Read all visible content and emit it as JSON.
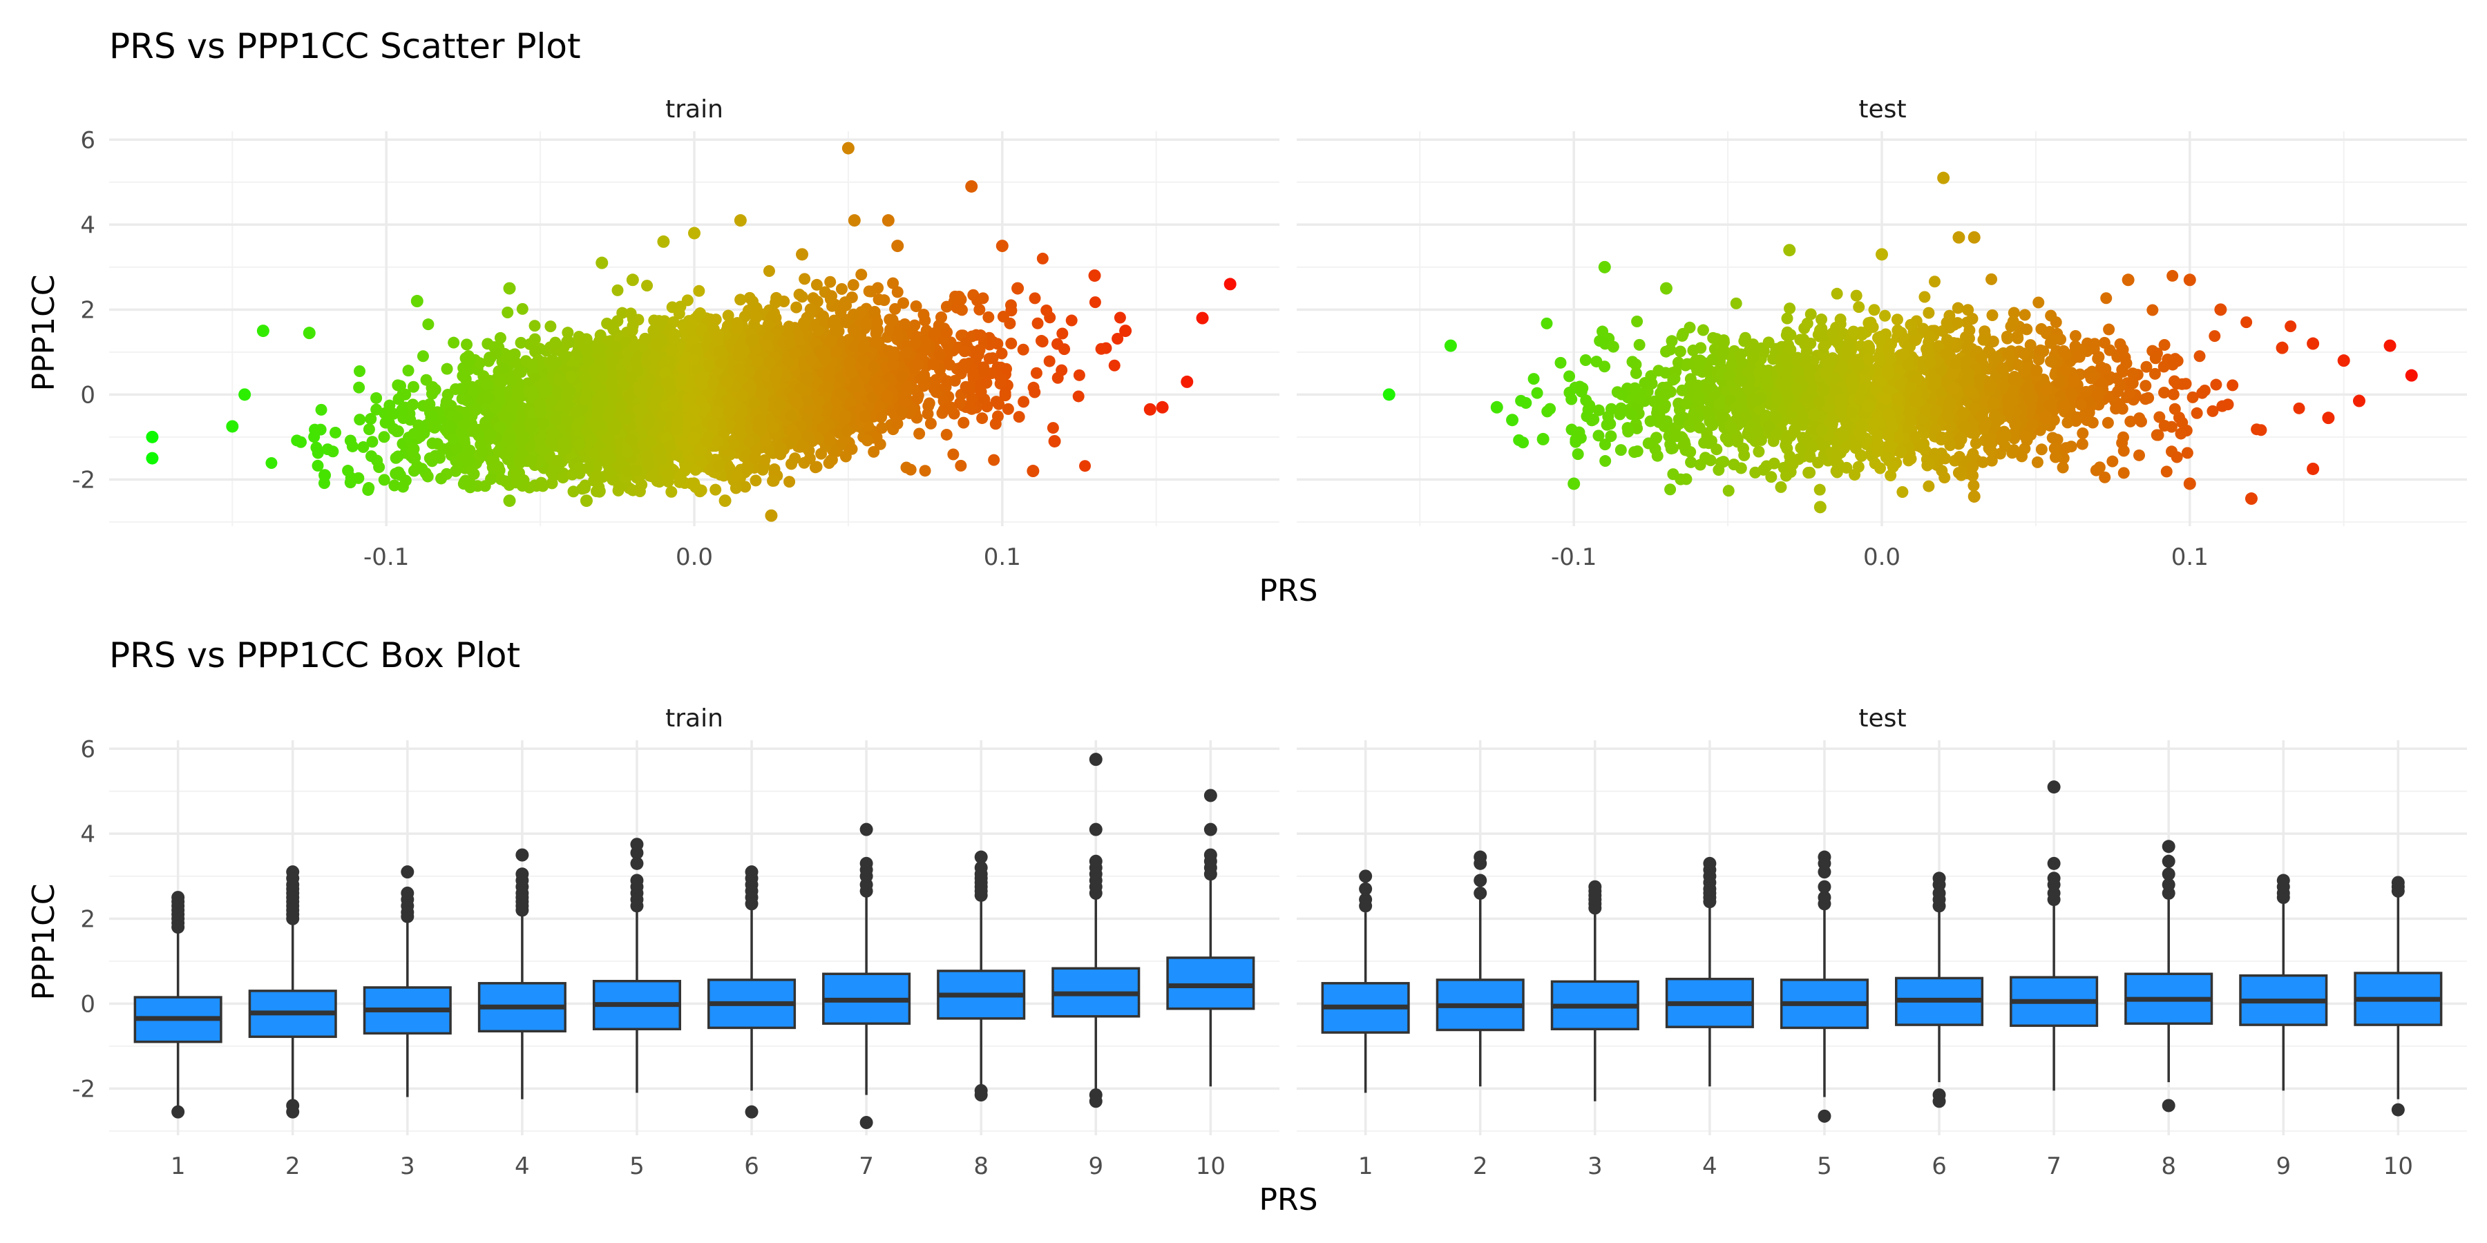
{
  "chart_data": [
    {
      "type": "scatter",
      "title": "PRS vs PPP1CC Scatter Plot",
      "xlabel": "PRS",
      "ylabel": "PPP1CC",
      "xlim": [
        -0.19,
        0.19
      ],
      "ylim": [
        -3.1,
        6.2
      ],
      "x_ticks": [
        -0.1,
        0.0,
        0.1
      ],
      "x_tick_labels": [
        "-0.1",
        "0.0",
        "0.1"
      ],
      "y_ticks": [
        -2,
        0,
        2,
        4,
        6
      ],
      "y_tick_labels": [
        "-2",
        "0",
        "2",
        "4",
        "6"
      ],
      "grid": true,
      "legend": "none",
      "color_gradient": {
        "low": "#00ff00",
        "mid": "#c0b400",
        "high": "#ff0000",
        "by": "x"
      },
      "facets": [
        {
          "label": "train",
          "bulk": {
            "x_mean": 0.0,
            "x_sd": 0.042,
            "y_mean": -0.05,
            "y_sd": 0.85,
            "slope": 9,
            "n": 5000
          },
          "points": [
            [
              -0.176,
              -1.0
            ],
            [
              -0.176,
              -1.5
            ],
            [
              -0.15,
              -0.75
            ],
            [
              -0.146,
              0.0
            ],
            [
              -0.14,
              1.5
            ],
            [
              -0.125,
              1.45
            ],
            [
              -0.12,
              -1.9
            ],
            [
              -0.09,
              2.2
            ],
            [
              -0.06,
              2.5
            ],
            [
              -0.06,
              -2.5
            ],
            [
              -0.035,
              -2.5
            ],
            [
              -0.03,
              3.1
            ],
            [
              -0.02,
              2.7
            ],
            [
              -0.01,
              3.6
            ],
            [
              0.0,
              3.8
            ],
            [
              0.01,
              -2.5
            ],
            [
              0.015,
              4.1
            ],
            [
              0.025,
              -2.85
            ],
            [
              0.035,
              3.3
            ],
            [
              0.05,
              5.8
            ],
            [
              0.052,
              4.1
            ],
            [
              0.063,
              4.1
            ],
            [
              0.066,
              3.5
            ],
            [
              0.09,
              4.9
            ],
            [
              0.1,
              3.5
            ],
            [
              0.105,
              2.5
            ],
            [
              0.11,
              -1.8
            ],
            [
              0.117,
              -1.1
            ],
            [
              0.13,
              2.8
            ],
            [
              0.14,
              1.5
            ],
            [
              0.148,
              -0.35
            ],
            [
              0.152,
              -0.3
            ],
            [
              0.16,
              0.3
            ],
            [
              0.165,
              1.8
            ],
            [
              0.174,
              2.6
            ]
          ]
        },
        {
          "label": "test",
          "bulk": {
            "x_mean": 0.0,
            "x_sd": 0.042,
            "y_mean": -0.05,
            "y_sd": 0.8,
            "slope": 2,
            "n": 2200
          },
          "points": [
            [
              -0.16,
              0.0
            ],
            [
              -0.14,
              1.15
            ],
            [
              -0.125,
              -0.3
            ],
            [
              -0.12,
              -0.6
            ],
            [
              -0.11,
              -1.05
            ],
            [
              -0.1,
              -2.1
            ],
            [
              -0.09,
              3.0
            ],
            [
              -0.07,
              2.5
            ],
            [
              -0.03,
              3.4
            ],
            [
              0.0,
              3.3
            ],
            [
              0.02,
              5.1
            ],
            [
              0.025,
              3.7
            ],
            [
              0.03,
              3.7
            ],
            [
              0.03,
              -2.4
            ],
            [
              -0.02,
              -2.65
            ],
            [
              0.08,
              2.7
            ],
            [
              0.1,
              2.7
            ],
            [
              0.1,
              -2.1
            ],
            [
              0.11,
              2.0
            ],
            [
              0.12,
              -2.45
            ],
            [
              0.13,
              1.1
            ],
            [
              0.14,
              1.2
            ],
            [
              0.14,
              -1.75
            ],
            [
              0.145,
              -0.55
            ],
            [
              0.15,
              0.8
            ],
            [
              0.155,
              -0.15
            ],
            [
              0.165,
              1.15
            ],
            [
              0.172,
              0.45
            ]
          ]
        }
      ]
    },
    {
      "type": "box",
      "title": "PRS vs PPP1CC Box Plot",
      "xlabel": "PRS",
      "ylabel": "PPP1CC",
      "categories": [
        "1",
        "2",
        "3",
        "4",
        "5",
        "6",
        "7",
        "8",
        "9",
        "10"
      ],
      "ylim": [
        -3.1,
        6.2
      ],
      "y_ticks": [
        -2,
        0,
        2,
        4,
        6
      ],
      "y_tick_labels": [
        "-2",
        "0",
        "2",
        "4",
        "6"
      ],
      "grid": true,
      "legend": "none",
      "box_fill": "#1e90ff",
      "line_color": "#333333",
      "facets": [
        {
          "label": "train",
          "boxes": [
            {
              "q1": -0.9,
              "median": -0.35,
              "q3": 0.15,
              "lo": -2.5,
              "hi": 1.7,
              "outliers": [
                1.8,
                1.9,
                2.0,
                2.1,
                2.2,
                2.3,
                2.4,
                2.5,
                -2.55
              ]
            },
            {
              "q1": -0.78,
              "median": -0.22,
              "q3": 0.3,
              "lo": -2.35,
              "hi": 1.9,
              "outliers": [
                2.0,
                2.1,
                2.2,
                2.3,
                2.4,
                2.5,
                2.6,
                2.7,
                2.8,
                2.95,
                3.1,
                -2.4,
                -2.55
              ]
            },
            {
              "q1": -0.7,
              "median": -0.15,
              "q3": 0.38,
              "lo": -2.2,
              "hi": 1.95,
              "outliers": [
                2.05,
                2.15,
                2.3,
                2.45,
                2.6,
                3.1
              ]
            },
            {
              "q1": -0.65,
              "median": -0.08,
              "q3": 0.48,
              "lo": -2.25,
              "hi": 2.15,
              "outliers": [
                2.2,
                2.3,
                2.4,
                2.5,
                2.6,
                2.75,
                2.9,
                3.05,
                3.5
              ]
            },
            {
              "q1": -0.6,
              "median": -0.02,
              "q3": 0.53,
              "lo": -2.1,
              "hi": 2.2,
              "outliers": [
                2.3,
                2.45,
                2.6,
                2.75,
                2.9,
                3.3,
                3.55,
                3.75
              ]
            },
            {
              "q1": -0.57,
              "median": 0.0,
              "q3": 0.56,
              "lo": -2.05,
              "hi": 2.25,
              "outliers": [
                2.35,
                2.5,
                2.65,
                2.8,
                2.95,
                3.1,
                -2.55
              ]
            },
            {
              "q1": -0.47,
              "median": 0.08,
              "q3": 0.7,
              "lo": -2.15,
              "hi": 2.55,
              "outliers": [
                2.65,
                2.8,
                3.0,
                3.15,
                3.3,
                4.1,
                -2.8
              ]
            },
            {
              "q1": -0.35,
              "median": 0.2,
              "q3": 0.77,
              "lo": -2.0,
              "hi": 2.45,
              "outliers": [
                2.55,
                2.65,
                2.75,
                2.85,
                2.95,
                3.05,
                3.2,
                3.45,
                -2.05,
                -2.15
              ]
            },
            {
              "q1": -0.3,
              "median": 0.23,
              "q3": 0.83,
              "lo": -2.1,
              "hi": 2.5,
              "outliers": [
                2.6,
                2.75,
                2.9,
                3.05,
                3.2,
                3.35,
                4.1,
                5.75,
                -2.15,
                -2.3
              ]
            },
            {
              "q1": -0.12,
              "median": 0.42,
              "q3": 1.08,
              "lo": -1.95,
              "hi": 2.9,
              "outliers": [
                3.05,
                3.2,
                3.35,
                3.5,
                4.1,
                4.9
              ]
            }
          ]
        },
        {
          "label": "test",
          "boxes": [
            {
              "q1": -0.68,
              "median": -0.08,
              "q3": 0.48,
              "lo": -2.1,
              "hi": 2.15,
              "outliers": [
                2.3,
                2.45,
                2.7,
                3.0
              ]
            },
            {
              "q1": -0.62,
              "median": -0.05,
              "q3": 0.56,
              "lo": -1.95,
              "hi": 2.5,
              "outliers": [
                2.6,
                2.9,
                3.3,
                3.45
              ]
            },
            {
              "q1": -0.6,
              "median": -0.06,
              "q3": 0.52,
              "lo": -2.3,
              "hi": 2.15,
              "outliers": [
                2.25,
                2.35,
                2.45,
                2.55,
                2.65,
                2.75
              ]
            },
            {
              "q1": -0.55,
              "median": 0.0,
              "q3": 0.58,
              "lo": -1.95,
              "hi": 2.3,
              "outliers": [
                2.4,
                2.5,
                2.6,
                2.7,
                2.85,
                3.0,
                3.15,
                3.3
              ]
            },
            {
              "q1": -0.57,
              "median": 0.0,
              "q3": 0.56,
              "lo": -2.2,
              "hi": 2.25,
              "outliers": [
                2.35,
                2.5,
                2.75,
                3.1,
                3.3,
                3.45,
                -2.65
              ]
            },
            {
              "q1": -0.5,
              "median": 0.08,
              "q3": 0.6,
              "lo": -1.85,
              "hi": 2.2,
              "outliers": [
                2.3,
                2.45,
                2.6,
                2.8,
                2.95,
                -2.15,
                -2.3
              ]
            },
            {
              "q1": -0.52,
              "median": 0.05,
              "q3": 0.62,
              "lo": -2.05,
              "hi": 2.35,
              "outliers": [
                2.45,
                2.6,
                2.8,
                2.95,
                3.3,
                5.1
              ]
            },
            {
              "q1": -0.47,
              "median": 0.1,
              "q3": 0.7,
              "lo": -1.85,
              "hi": 2.45,
              "outliers": [
                2.6,
                2.8,
                3.05,
                3.35,
                3.7,
                -2.4
              ]
            },
            {
              "q1": -0.5,
              "median": 0.06,
              "q3": 0.66,
              "lo": -2.05,
              "hi": 2.4,
              "outliers": [
                2.5,
                2.6,
                2.75,
                2.9
              ]
            },
            {
              "q1": -0.5,
              "median": 0.1,
              "q3": 0.72,
              "lo": -2.25,
              "hi": 2.6,
              "outliers": [
                2.65,
                2.75,
                2.85,
                -2.5
              ]
            }
          ]
        }
      ]
    }
  ]
}
